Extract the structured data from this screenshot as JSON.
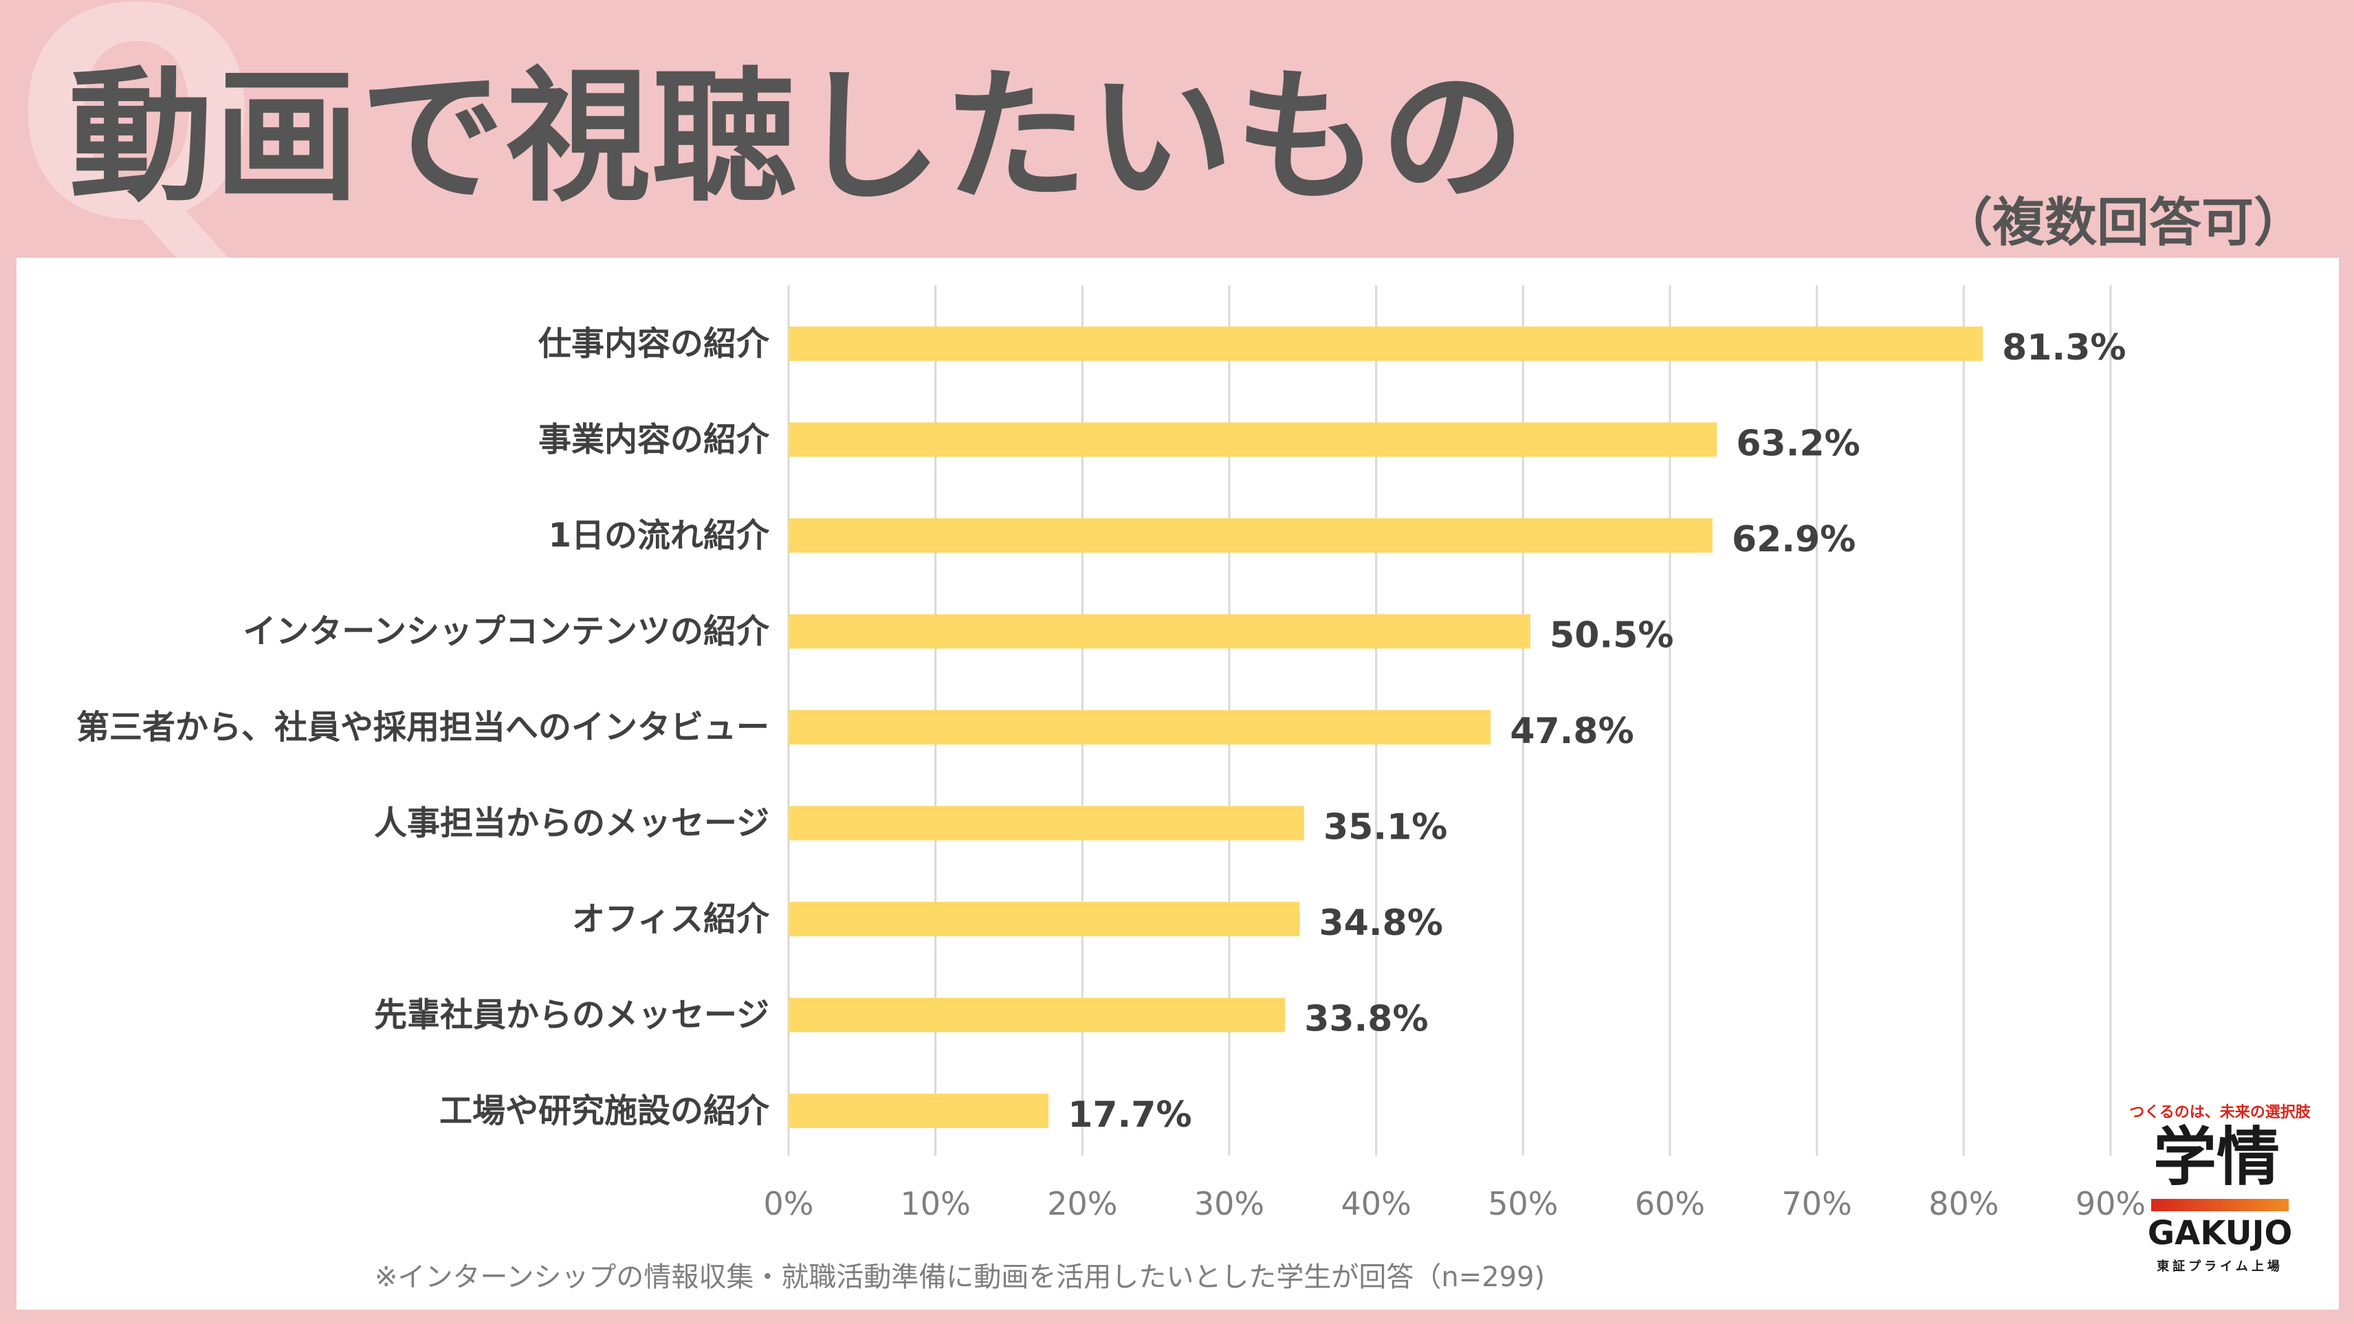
{
  "header": {
    "decor_mark": "Q",
    "title": "動画で視聴したいもの",
    "subtitle": "（複数回答可）"
  },
  "chart_data": {
    "type": "bar",
    "orientation": "horizontal",
    "categories": [
      "仕事内容の紹介",
      "事業内容の紹介",
      "1日の流れ紹介",
      "インターンシップコンテンツの紹介",
      "第三者から、社員や採用担当へのインタビュー",
      "人事担当からのメッセージ",
      "オフィス紹介",
      "先輩社員からのメッセージ",
      "工場や研究施設の紹介"
    ],
    "values": [
      81.3,
      63.2,
      62.9,
      50.5,
      47.8,
      35.1,
      34.8,
      33.8,
      17.7
    ],
    "value_labels": [
      "81.3%",
      "63.2%",
      "62.9%",
      "50.5%",
      "47.8%",
      "35.1%",
      "34.8%",
      "33.8%",
      "17.7%"
    ],
    "xlim": [
      0,
      90
    ],
    "x_ticks": [
      0,
      10,
      20,
      30,
      40,
      50,
      60,
      70,
      80,
      90
    ],
    "x_tick_labels": [
      "0%",
      "10%",
      "20%",
      "30%",
      "40%",
      "50%",
      "60%",
      "70%",
      "80%",
      "90%"
    ],
    "grid": true,
    "bar_color": "#ffd966",
    "footnote": "※インターンシップの情報収集・就職活動準備に動画を活用したいとした学生が回答（n=299)"
  },
  "logo": {
    "tagline": "つくるのは、未来の選択肢",
    "mark": "学情",
    "name_en": "GAKUJO",
    "sub": "東証プライム上場"
  }
}
